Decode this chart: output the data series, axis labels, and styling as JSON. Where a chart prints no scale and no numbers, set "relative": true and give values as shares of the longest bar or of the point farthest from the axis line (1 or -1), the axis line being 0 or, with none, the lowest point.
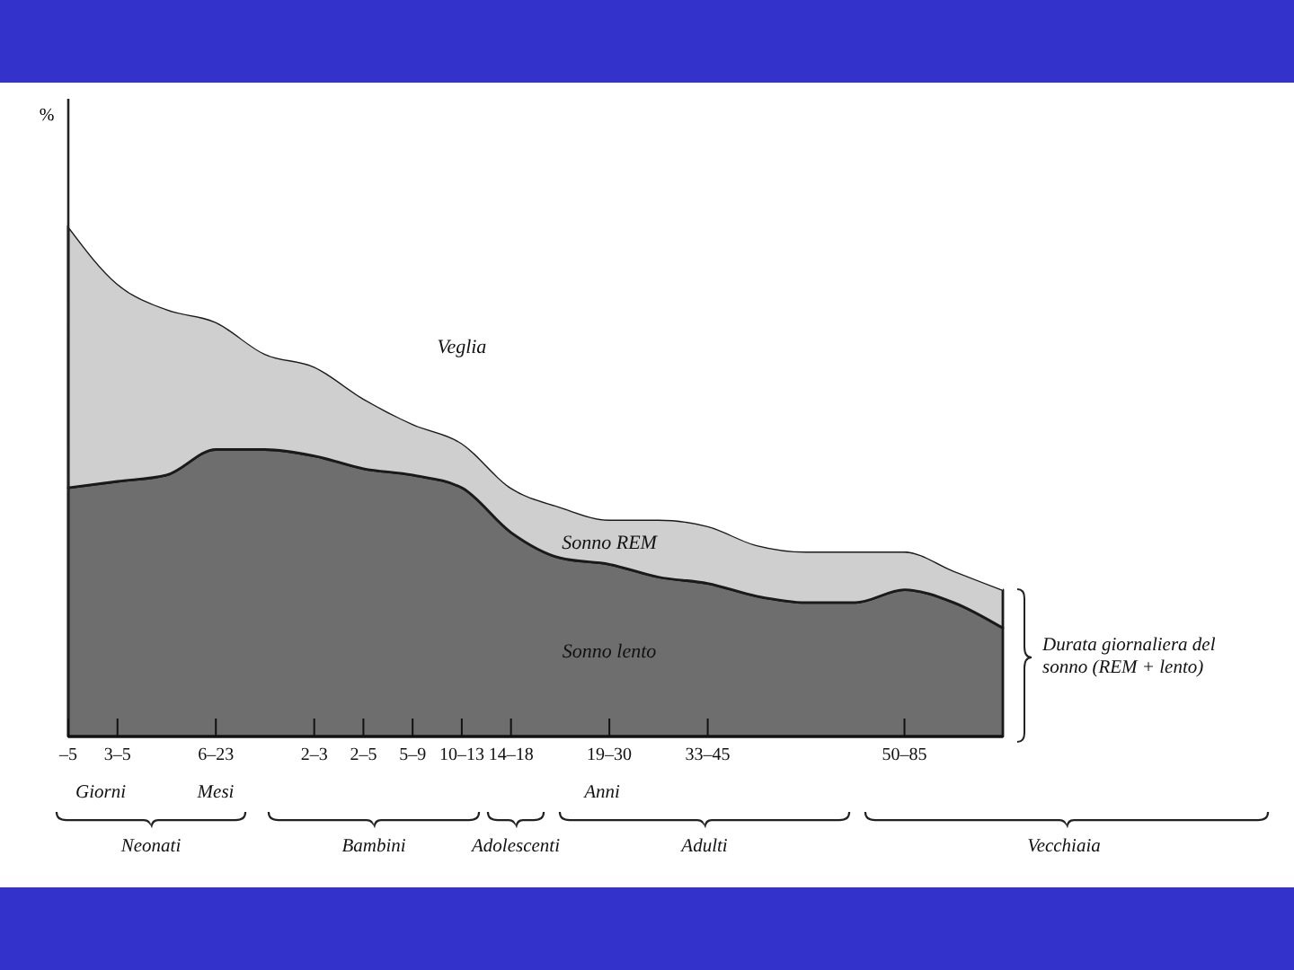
{
  "chart_data": {
    "type": "area",
    "relative": true,
    "stacked": true,
    "ylabel": "%",
    "categories": [
      "–5",
      "3–5",
      null,
      "6–23",
      null,
      "2–3",
      "2–5",
      "5–9",
      "10–13",
      "14–18",
      null,
      "19–30",
      null,
      "33–45",
      null,
      null,
      null,
      "50–85",
      null,
      null
    ],
    "series": [
      {
        "name": "Sonno lento",
        "color": "#6e6e6e",
        "values": [
          0.39,
          0.4,
          0.41,
          0.45,
          0.45,
          0.44,
          0.42,
          0.41,
          0.39,
          0.32,
          0.28,
          0.27,
          0.25,
          0.24,
          0.22,
          0.21,
          0.21,
          0.23,
          0.21,
          0.17
        ]
      },
      {
        "name": "Sonno REM",
        "color": "#cfcfcf",
        "values": [
          0.41,
          0.31,
          0.26,
          0.2,
          0.15,
          0.14,
          0.11,
          0.08,
          0.07,
          0.07,
          0.08,
          0.07,
          0.09,
          0.09,
          0.08,
          0.08,
          0.08,
          0.06,
          0.05,
          0.06
        ]
      },
      {
        "name": "Veglia",
        "color": "#ffffff",
        "values": [
          0.2,
          0.29,
          0.33,
          0.35,
          0.4,
          0.42,
          0.47,
          0.51,
          0.54,
          0.61,
          0.64,
          0.66,
          0.66,
          0.67,
          0.7,
          0.71,
          0.71,
          0.71,
          0.74,
          0.77
        ]
      }
    ],
    "annotations": [
      "Giorni",
      "Mesi",
      "Anni",
      "Neonati",
      "Bambini",
      "Adolescenti",
      "Adulti",
      "Vecchiaia",
      "Durata giornaliera del sonno (REM + lento)"
    ]
  }
}
